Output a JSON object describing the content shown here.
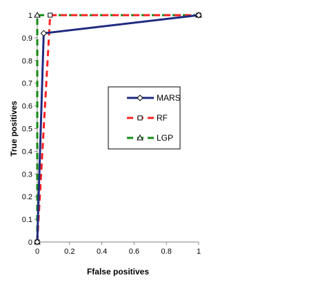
{
  "chart_data": {
    "type": "line",
    "xlabel": "Ffalse positives",
    "ylabel": "True positives",
    "xlim": [
      0,
      1
    ],
    "ylim": [
      0,
      1
    ],
    "x_ticks": [
      "0",
      "0.2",
      "0.4",
      "0.6",
      "0.8",
      "1"
    ],
    "y_ticks": [
      "0",
      "0.1",
      "0.2",
      "0.3",
      "0.4",
      "0.5",
      "0.6",
      "0.7",
      "0.8",
      "0.9",
      "1"
    ],
    "grid": false,
    "legend_position": "right",
    "series": [
      {
        "name": "MARS",
        "color": "#1F2A80",
        "style": "solid",
        "marker": "diamond",
        "x": [
          0,
          0.04,
          1
        ],
        "y": [
          0,
          0.92,
          1
        ]
      },
      {
        "name": "RF",
        "color": "#FF2020",
        "style": "dashed",
        "marker": "square",
        "x": [
          0,
          0.08,
          1
        ],
        "y": [
          0,
          1,
          1
        ]
      },
      {
        "name": "LGP",
        "color": "#138A13",
        "style": "dashed",
        "marker": "triangle",
        "x": [
          0,
          0,
          1
        ],
        "y": [
          0,
          1,
          1
        ]
      }
    ]
  }
}
